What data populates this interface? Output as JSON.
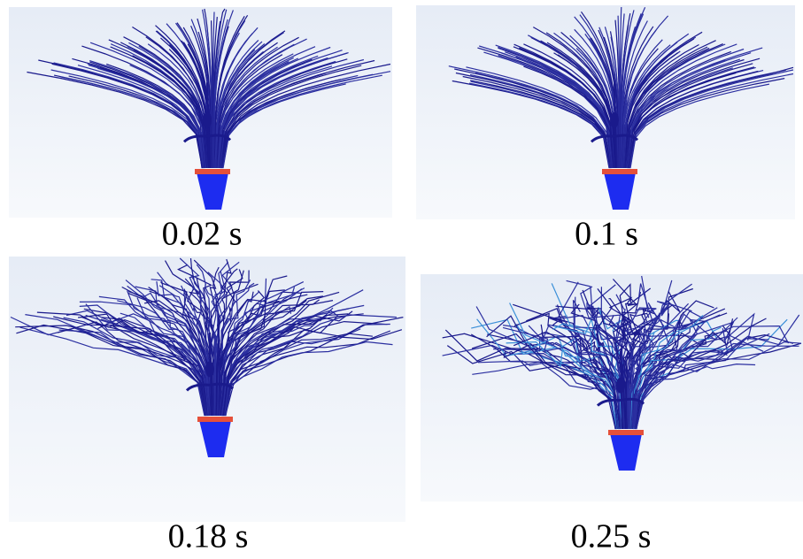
{
  "panels": [
    {
      "caption": "0.02 s"
    },
    {
      "caption": "0.1 s"
    },
    {
      "caption": "0.18 s"
    },
    {
      "caption": "0.25 s"
    }
  ]
}
